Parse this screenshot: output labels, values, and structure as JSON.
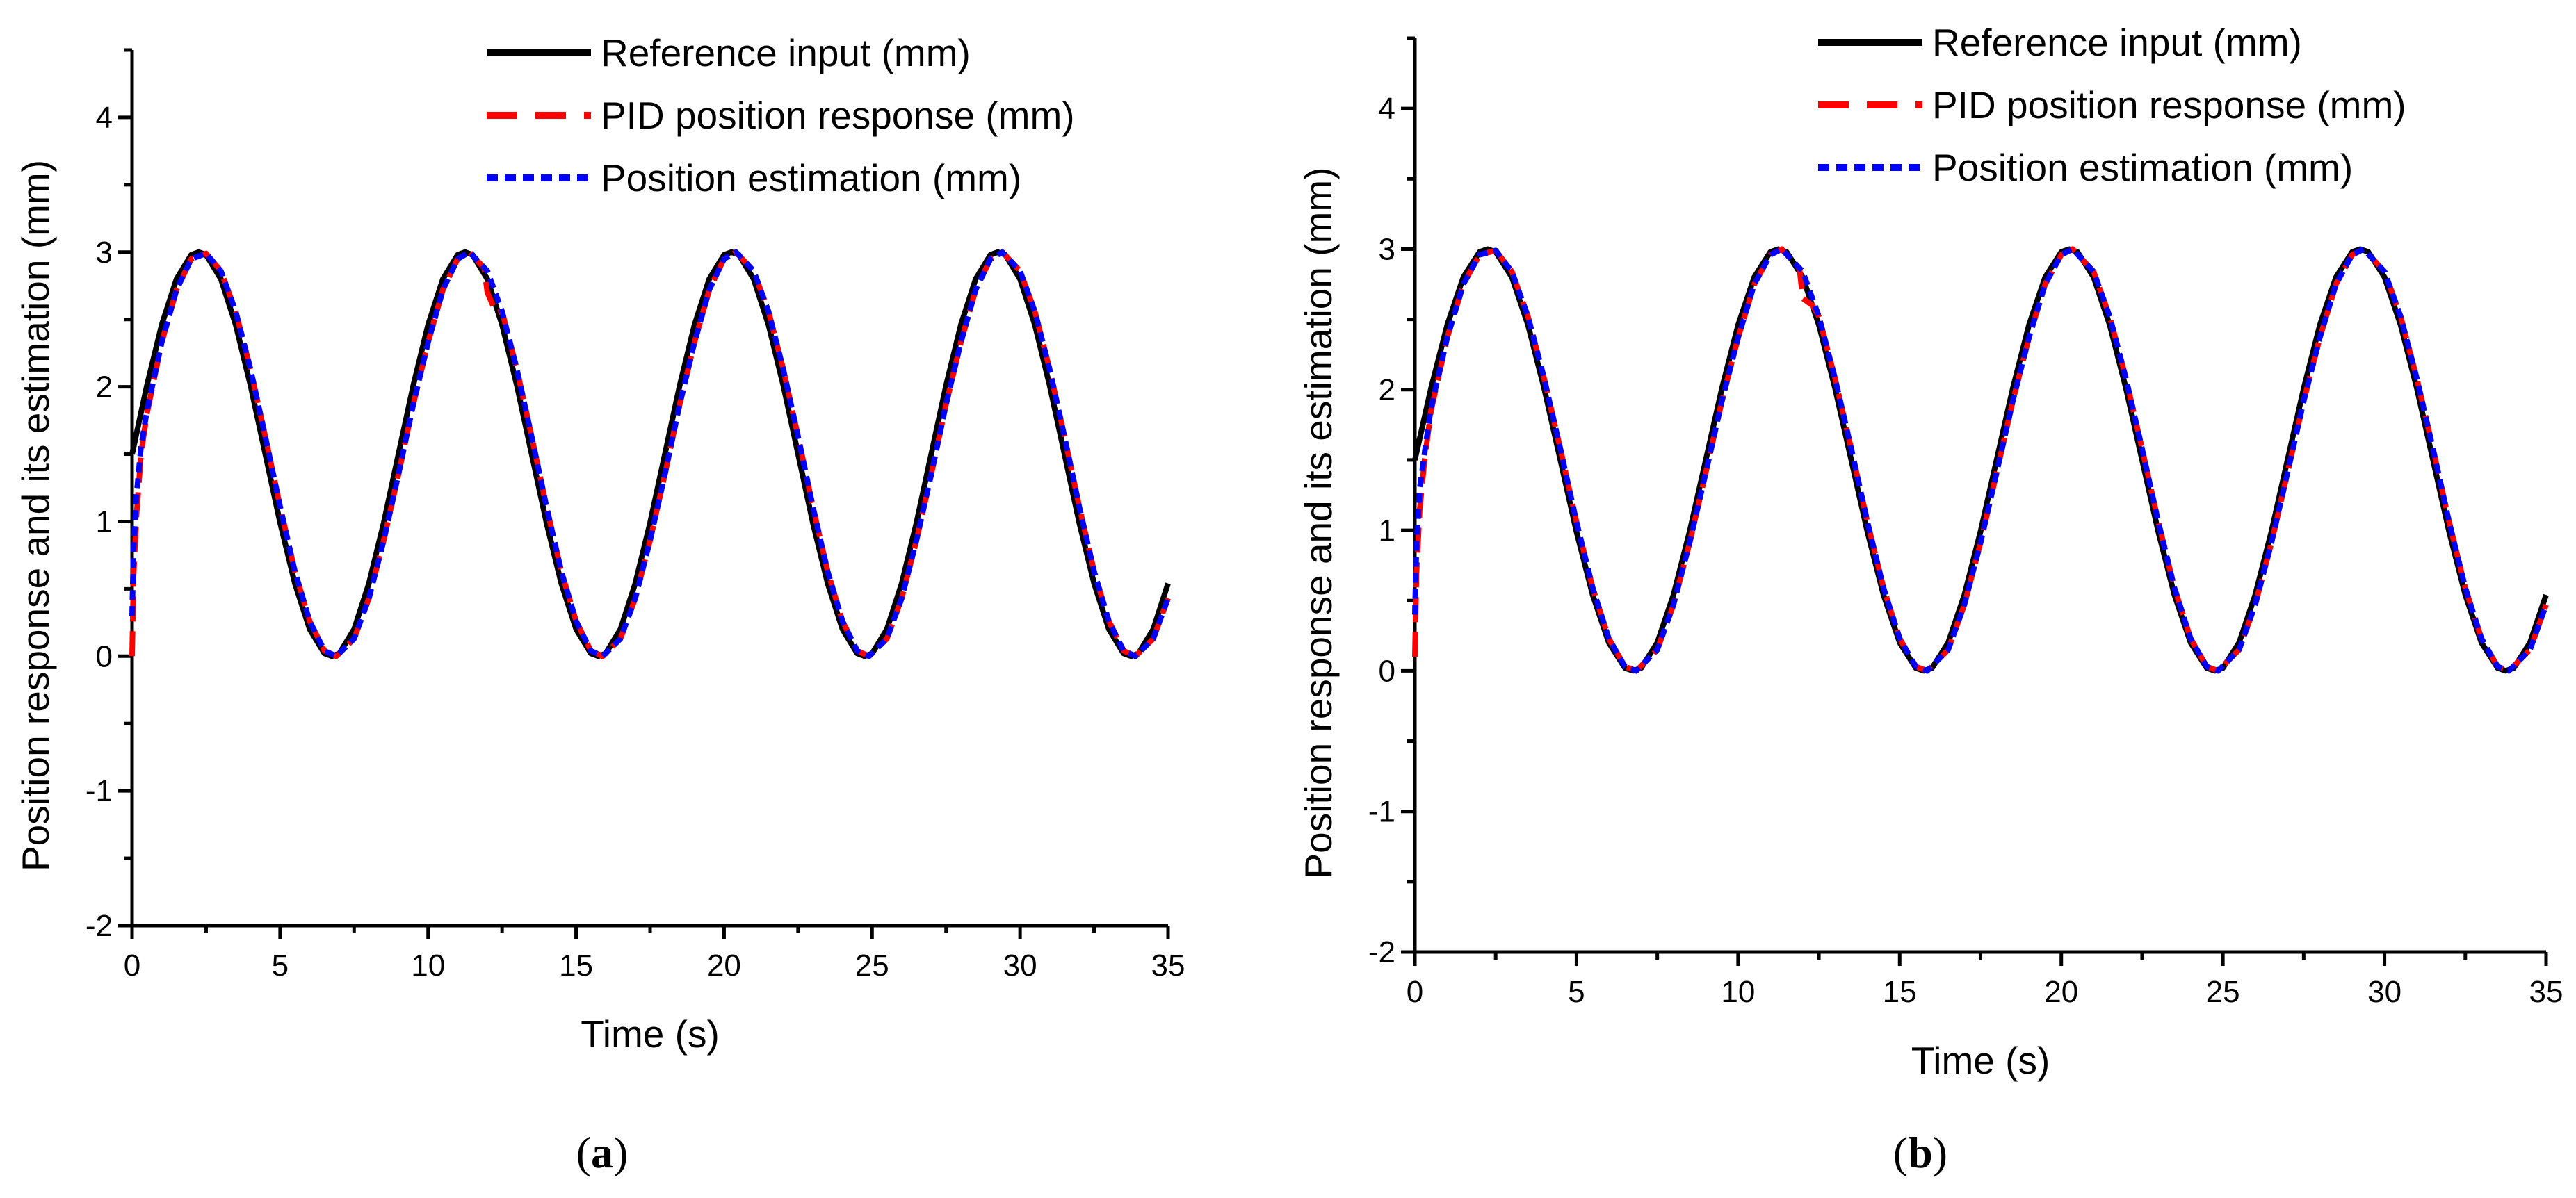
{
  "chart_data": [
    {
      "type": "line",
      "panel_label": "a",
      "xlabel": "Time (s)",
      "ylabel": "Position response and its estimation (mm)",
      "xlim": [
        0,
        35
      ],
      "ylim": [
        -2,
        4.5
      ],
      "xticks": [
        0,
        5,
        10,
        15,
        20,
        25,
        30,
        35
      ],
      "yticks": [
        -2,
        -1,
        0,
        1,
        2,
        3,
        4
      ],
      "legend_position": "top-right",
      "model": "reference: y = 1.5 + 1.5*sin(2*pi*t/9); response/estimation lag reference by ~0.15 s",
      "series": [
        {
          "name": "Reference input (mm)",
          "color": "#000000",
          "style": "solid",
          "x": [
            0,
            0.5,
            1,
            1.5,
            2,
            2.25,
            2.5,
            3,
            3.5,
            4,
            4.5,
            5,
            5.5,
            6,
            6.5,
            6.75,
            7,
            7.5,
            8,
            8.5,
            9,
            9.5,
            10,
            10.5,
            11,
            11.25,
            11.5,
            12,
            12.5,
            13,
            13.5,
            14,
            14.5,
            15,
            15.5,
            15.75,
            16,
            16.5,
            17,
            17.5,
            18,
            18.5,
            19,
            19.5,
            20,
            20.25,
            20.5,
            21,
            21.5,
            22,
            22.5,
            23,
            23.5,
            24,
            24.5,
            24.75,
            25,
            25.5,
            26,
            26.5,
            27,
            27.5,
            28,
            28.5,
            29,
            29.25,
            29.5,
            30,
            30.5,
            31,
            31.5,
            32,
            32.5,
            33,
            33.5,
            33.75,
            34,
            34.5,
            35
          ],
          "y": [
            1.5,
            2.01,
            2.46,
            2.8,
            2.98,
            3.0,
            2.98,
            2.8,
            2.46,
            2.01,
            1.5,
            0.99,
            0.54,
            0.2,
            0.02,
            0.0,
            0.02,
            0.2,
            0.54,
            0.99,
            1.5,
            2.01,
            2.46,
            2.8,
            2.98,
            3.0,
            2.98,
            2.8,
            2.46,
            2.01,
            1.5,
            0.99,
            0.54,
            0.2,
            0.02,
            0.0,
            0.02,
            0.2,
            0.54,
            0.99,
            1.5,
            2.01,
            2.46,
            2.8,
            2.98,
            3.0,
            2.98,
            2.8,
            2.46,
            2.01,
            1.5,
            0.99,
            0.54,
            0.2,
            0.02,
            0.0,
            0.02,
            0.2,
            0.54,
            0.99,
            1.5,
            2.01,
            2.46,
            2.8,
            2.98,
            3.0,
            2.98,
            2.8,
            2.46,
            2.01,
            1.5,
            0.99,
            0.54,
            0.2,
            0.02,
            0.0,
            0.02,
            0.2,
            0.54
          ]
        },
        {
          "name": "PID position response (mm)",
          "color": "#ff0000",
          "style": "dashed",
          "x": [
            0,
            0.05,
            0.15,
            0.3,
            0.5,
            1,
            1.5,
            2,
            2.5,
            3,
            3.5,
            4,
            4.5,
            5,
            5.5,
            6,
            6.5,
            6.9,
            7.5,
            8,
            8.5,
            9,
            9.5,
            10,
            10.5,
            11,
            11.4,
            11.9,
            12.0,
            12.3,
            12.5,
            13,
            13.5,
            14,
            14.5,
            15,
            15.5,
            15.9,
            16.5,
            17,
            17.5,
            18,
            18.5,
            19,
            19.5,
            20,
            20.4,
            21,
            21.5,
            22,
            22.5,
            23,
            23.5,
            24,
            24.5,
            24.9,
            25.5,
            26,
            26.5,
            27,
            27.5,
            28,
            28.5,
            29,
            29.4,
            30,
            30.5,
            31,
            31.5,
            32,
            32.5,
            33,
            33.5,
            33.9,
            34.5,
            35
          ],
          "y": [
            0.0,
            0.6,
            1.05,
            1.5,
            1.8,
            2.33,
            2.72,
            2.95,
            2.99,
            2.86,
            2.56,
            2.13,
            1.63,
            1.11,
            0.63,
            0.26,
            0.04,
            0.0,
            0.13,
            0.43,
            0.86,
            1.35,
            1.87,
            2.33,
            2.72,
            2.95,
            3.0,
            2.88,
            2.7,
            2.55,
            2.56,
            2.13,
            1.63,
            1.11,
            0.63,
            0.26,
            0.04,
            0.0,
            0.13,
            0.43,
            0.86,
            1.35,
            1.87,
            2.33,
            2.72,
            2.95,
            3.0,
            2.86,
            2.56,
            2.13,
            1.63,
            1.11,
            0.63,
            0.26,
            0.04,
            0.0,
            0.13,
            0.43,
            0.86,
            1.35,
            1.87,
            2.33,
            2.72,
            2.95,
            3.0,
            2.86,
            2.56,
            2.13,
            1.63,
            1.11,
            0.63,
            0.26,
            0.04,
            0.0,
            0.13,
            0.43
          ]
        },
        {
          "name": "Position estimation (mm)",
          "color": "#0000ff",
          "style": "dotted",
          "x": [
            0,
            0.05,
            0.15,
            0.3,
            0.5,
            1,
            1.5,
            2,
            2.5,
            3,
            3.5,
            4,
            4.5,
            5,
            5.5,
            6,
            6.5,
            6.9,
            7.5,
            8,
            8.5,
            9,
            9.5,
            10,
            10.5,
            11,
            11.4,
            12,
            12.5,
            13,
            13.5,
            14,
            14.5,
            15,
            15.5,
            15.9,
            16.5,
            17,
            17.5,
            18,
            18.5,
            19,
            19.5,
            20,
            20.4,
            21,
            21.5,
            22,
            22.5,
            23,
            23.5,
            24,
            24.5,
            24.9,
            25.5,
            26,
            26.5,
            27,
            27.5,
            28,
            28.5,
            29,
            29.4,
            30,
            30.5,
            31,
            31.5,
            32,
            32.5,
            33,
            33.5,
            33.9,
            34.5,
            35
          ],
          "y": [
            0.3,
            0.8,
            1.2,
            1.55,
            1.82,
            2.33,
            2.72,
            2.95,
            2.99,
            2.86,
            2.56,
            2.13,
            1.63,
            1.11,
            0.63,
            0.26,
            0.04,
            0.0,
            0.13,
            0.43,
            0.86,
            1.35,
            1.87,
            2.33,
            2.72,
            2.95,
            3.0,
            2.86,
            2.56,
            2.13,
            1.63,
            1.11,
            0.63,
            0.26,
            0.04,
            0.0,
            0.13,
            0.43,
            0.86,
            1.35,
            1.87,
            2.33,
            2.72,
            2.95,
            3.0,
            2.86,
            2.56,
            2.13,
            1.63,
            1.11,
            0.63,
            0.26,
            0.04,
            0.0,
            0.13,
            0.43,
            0.86,
            1.35,
            1.87,
            2.33,
            2.72,
            2.95,
            3.0,
            2.86,
            2.56,
            2.13,
            1.63,
            1.11,
            0.63,
            0.26,
            0.04,
            0.0,
            0.13,
            0.43
          ]
        }
      ]
    },
    {
      "type": "line",
      "panel_label": "b",
      "xlabel": "Time (s)",
      "ylabel": "Position response and its estimation (mm)",
      "xlim": [
        0,
        35
      ],
      "ylim": [
        -2,
        4.5
      ],
      "xticks": [
        0,
        5,
        10,
        15,
        20,
        25,
        30,
        35
      ],
      "yticks": [
        -2,
        -1,
        0,
        1,
        2,
        3,
        4
      ],
      "legend_position": "top-right",
      "model": "same reference; tighter tracking, small dip after ~11.9 s",
      "series": [
        {
          "name": "Reference input (mm)",
          "color": "#000000",
          "style": "solid",
          "x": [
            0,
            0.5,
            1,
            1.5,
            2,
            2.25,
            2.5,
            3,
            3.5,
            4,
            4.5,
            5,
            5.5,
            6,
            6.5,
            6.75,
            7,
            7.5,
            8,
            8.5,
            9,
            9.5,
            10,
            10.5,
            11,
            11.25,
            11.5,
            12,
            12.5,
            13,
            13.5,
            14,
            14.5,
            15,
            15.5,
            15.75,
            16,
            16.5,
            17,
            17.5,
            18,
            18.5,
            19,
            19.5,
            20,
            20.25,
            20.5,
            21,
            21.5,
            22,
            22.5,
            23,
            23.5,
            24,
            24.5,
            24.75,
            25,
            25.5,
            26,
            26.5,
            27,
            27.5,
            28,
            28.5,
            29,
            29.25,
            29.5,
            30,
            30.5,
            31,
            31.5,
            32,
            32.5,
            33,
            33.5,
            33.75,
            34,
            34.5,
            35
          ],
          "y": [
            1.5,
            2.01,
            2.46,
            2.8,
            2.98,
            3.0,
            2.98,
            2.8,
            2.46,
            2.01,
            1.5,
            0.99,
            0.54,
            0.2,
            0.02,
            0.0,
            0.02,
            0.2,
            0.54,
            0.99,
            1.5,
            2.01,
            2.46,
            2.8,
            2.98,
            3.0,
            2.98,
            2.8,
            2.46,
            2.01,
            1.5,
            0.99,
            0.54,
            0.2,
            0.02,
            0.0,
            0.02,
            0.2,
            0.54,
            0.99,
            1.5,
            2.01,
            2.46,
            2.8,
            2.98,
            3.0,
            2.98,
            2.8,
            2.46,
            2.01,
            1.5,
            0.99,
            0.54,
            0.2,
            0.02,
            0.0,
            0.02,
            0.2,
            0.54,
            0.99,
            1.5,
            2.01,
            2.46,
            2.8,
            2.98,
            3.0,
            2.98,
            2.8,
            2.46,
            2.01,
            1.5,
            0.99,
            0.54,
            0.2,
            0.02,
            0.0,
            0.02,
            0.2,
            0.54
          ]
        },
        {
          "name": "PID position response (mm)",
          "color": "#ff0000",
          "style": "dashed",
          "x": [
            0,
            0.05,
            0.15,
            0.3,
            0.5,
            1,
            1.5,
            2,
            2.5,
            3,
            3.5,
            4,
            4.5,
            5,
            5.5,
            6,
            6.5,
            6.85,
            7.5,
            8,
            8.5,
            9,
            9.5,
            10,
            10.5,
            11,
            11.35,
            11.9,
            12.0,
            12.3,
            12.5,
            13,
            13.5,
            14,
            14.5,
            15,
            15.5,
            15.85,
            16.5,
            17,
            17.5,
            18,
            18.5,
            19,
            19.5,
            20,
            20.35,
            21,
            21.5,
            22,
            22.5,
            23,
            23.5,
            24,
            24.5,
            24.85,
            25.5,
            26,
            26.5,
            27,
            27.5,
            28,
            28.5,
            29,
            29.35,
            30,
            30.5,
            31,
            31.5,
            32,
            32.5,
            33,
            33.5,
            33.85,
            34.5,
            35
          ],
          "y": [
            0.1,
            0.7,
            1.15,
            1.5,
            1.85,
            2.37,
            2.75,
            2.96,
            2.99,
            2.84,
            2.52,
            2.08,
            1.58,
            1.06,
            0.59,
            0.23,
            0.03,
            0.0,
            0.15,
            0.47,
            0.91,
            1.41,
            1.92,
            2.37,
            2.75,
            2.96,
            3.0,
            2.86,
            2.65,
            2.6,
            2.52,
            2.08,
            1.58,
            1.06,
            0.59,
            0.23,
            0.03,
            0.0,
            0.15,
            0.47,
            0.91,
            1.41,
            1.92,
            2.37,
            2.75,
            2.96,
            3.0,
            2.84,
            2.52,
            2.08,
            1.58,
            1.06,
            0.59,
            0.23,
            0.03,
            0.0,
            0.15,
            0.47,
            0.91,
            1.41,
            1.92,
            2.37,
            2.75,
            2.96,
            3.0,
            2.84,
            2.52,
            2.08,
            1.58,
            1.06,
            0.59,
            0.23,
            0.03,
            0.0,
            0.15,
            0.47
          ]
        },
        {
          "name": "Position estimation (mm)",
          "color": "#0000ff",
          "style": "dotted",
          "x": [
            0,
            0.05,
            0.15,
            0.3,
            0.5,
            1,
            1.5,
            2,
            2.5,
            3,
            3.5,
            4,
            4.5,
            5,
            5.5,
            6,
            6.5,
            6.85,
            7.5,
            8,
            8.5,
            9,
            9.5,
            10,
            10.5,
            11,
            11.35,
            12,
            12.5,
            13,
            13.5,
            14,
            14.5,
            15,
            15.5,
            15.85,
            16.5,
            17,
            17.5,
            18,
            18.5,
            19,
            19.5,
            20,
            20.35,
            21,
            21.5,
            22,
            22.5,
            23,
            23.5,
            24,
            24.5,
            24.85,
            25.5,
            26,
            26.5,
            27,
            27.5,
            28,
            28.5,
            29,
            29.35,
            30,
            30.5,
            31,
            31.5,
            32,
            32.5,
            33,
            33.5,
            33.85,
            34.5,
            35
          ],
          "y": [
            0.4,
            0.9,
            1.3,
            1.55,
            1.87,
            2.37,
            2.75,
            2.96,
            2.99,
            2.84,
            2.52,
            2.08,
            1.58,
            1.06,
            0.59,
            0.23,
            0.03,
            0.0,
            0.15,
            0.47,
            0.91,
            1.41,
            1.92,
            2.37,
            2.75,
            2.96,
            3.0,
            2.84,
            2.52,
            2.08,
            1.58,
            1.06,
            0.59,
            0.23,
            0.03,
            0.0,
            0.15,
            0.47,
            0.91,
            1.41,
            1.92,
            2.37,
            2.75,
            2.96,
            3.0,
            2.84,
            2.52,
            2.08,
            1.58,
            1.06,
            0.59,
            0.23,
            0.03,
            0.0,
            0.15,
            0.47,
            0.91,
            1.41,
            1.92,
            2.37,
            2.75,
            2.96,
            3.0,
            2.84,
            2.52,
            2.08,
            1.58,
            1.06,
            0.59,
            0.23,
            0.03,
            0.0,
            0.15,
            0.47
          ]
        }
      ]
    }
  ]
}
